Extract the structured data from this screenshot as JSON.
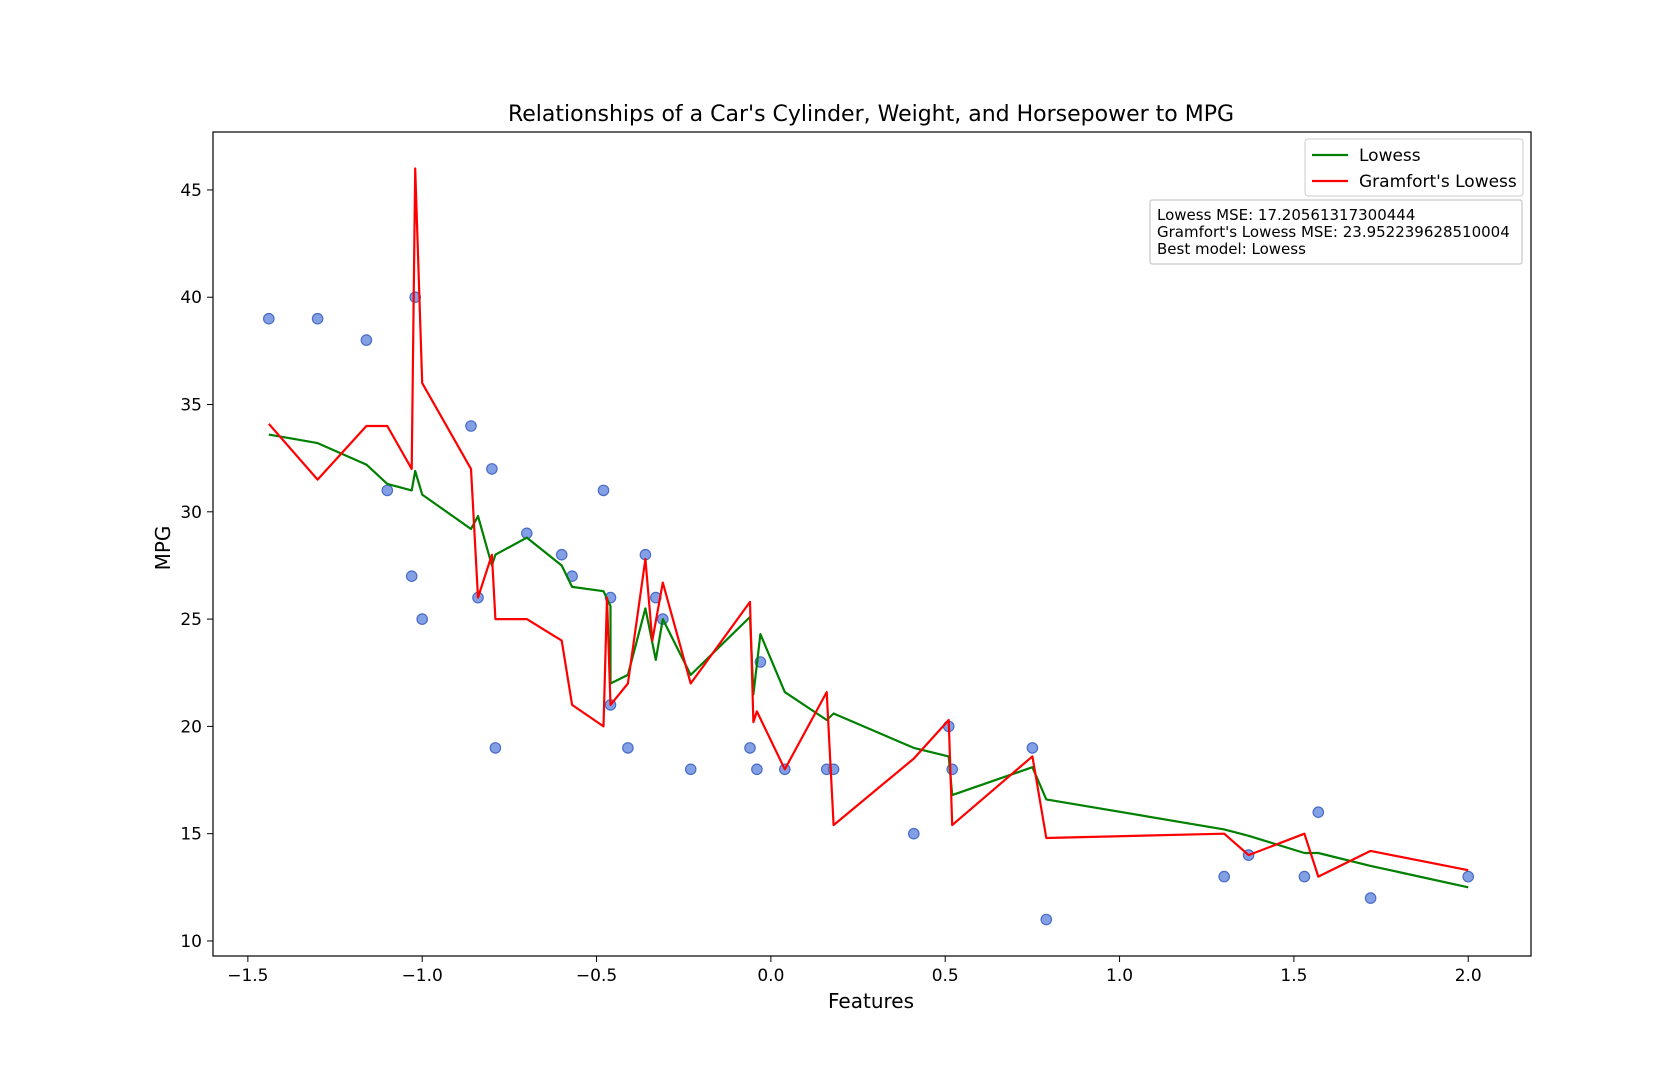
{
  "chart_data": {
    "type": "scatter",
    "title": "Relationships of a Car's Cylinder, Weight, and Horsepower to MPG",
    "xlabel": "Features",
    "ylabel": "MPG",
    "xlim": [
      -1.6,
      2.18
    ],
    "ylim": [
      9.3,
      47.7
    ],
    "xticks": [
      -1.5,
      -1.0,
      -0.5,
      0.0,
      0.5,
      1.0,
      1.5,
      2.0
    ],
    "xtick_labels": [
      "−1.5",
      "−1.0",
      "−0.5",
      "0.0",
      "0.5",
      "1.0",
      "1.5",
      "2.0"
    ],
    "yticks": [
      10,
      15,
      20,
      25,
      30,
      35,
      40,
      45
    ],
    "ytick_labels": [
      "10",
      "15",
      "20",
      "25",
      "30",
      "35",
      "40",
      "45"
    ],
    "grid": false,
    "legend_position": "top-right",
    "scatter": {
      "color": "#6f8fe0",
      "edgecolor": "#4a6cc8",
      "x": [
        -1.44,
        -1.3,
        -1.16,
        -1.1,
        -1.03,
        -1.02,
        -1.0,
        -0.86,
        -0.84,
        -0.8,
        -0.79,
        -0.7,
        -0.6,
        -0.57,
        -0.48,
        -0.46,
        -0.46,
        -0.41,
        -0.36,
        -0.33,
        -0.31,
        -0.23,
        -0.06,
        -0.04,
        -0.03,
        0.04,
        0.16,
        0.18,
        0.41,
        0.51,
        0.52,
        0.75,
        0.79,
        1.3,
        1.37,
        1.53,
        1.57,
        1.72,
        2.0
      ],
      "y": [
        39,
        39,
        38,
        31,
        27,
        40,
        25,
        34,
        26,
        32,
        19,
        29,
        28,
        27,
        31,
        26,
        21,
        19,
        28,
        26,
        25,
        18,
        19,
        18,
        23,
        18,
        18,
        18,
        15,
        20,
        18,
        19,
        11,
        13,
        14,
        13,
        16,
        12,
        13
      ]
    },
    "series": [
      {
        "name": "Lowess",
        "color": "#008000",
        "x": [
          -1.44,
          -1.3,
          -1.16,
          -1.1,
          -1.03,
          -1.02,
          -1.0,
          -0.86,
          -0.84,
          -0.8,
          -0.79,
          -0.7,
          -0.6,
          -0.57,
          -0.48,
          -0.46,
          -0.46,
          -0.41,
          -0.36,
          -0.33,
          -0.31,
          -0.23,
          -0.06,
          -0.05,
          -0.03,
          0.04,
          0.16,
          0.18,
          0.41,
          0.51,
          0.52,
          0.75,
          0.79,
          1.3,
          1.37,
          1.53,
          1.57,
          1.72,
          2.0
        ],
        "y": [
          33.6,
          33.2,
          32.2,
          31.3,
          31.0,
          31.9,
          30.8,
          29.2,
          29.8,
          27.5,
          28.0,
          28.8,
          27.5,
          26.5,
          26.3,
          25.6,
          22.0,
          22.4,
          25.5,
          23.1,
          25.0,
          22.4,
          25.1,
          21.5,
          24.3,
          21.6,
          20.3,
          20.6,
          19.0,
          18.6,
          16.8,
          18.1,
          16.6,
          15.2,
          14.9,
          14.1,
          14.1,
          13.5,
          12.5
        ]
      },
      {
        "name": "Gramfort's Lowess",
        "color": "#ff0000",
        "x": [
          -1.44,
          -1.3,
          -1.16,
          -1.1,
          -1.03,
          -1.02,
          -1.0,
          -0.86,
          -0.84,
          -0.8,
          -0.79,
          -0.7,
          -0.6,
          -0.57,
          -0.48,
          -0.47,
          -0.46,
          -0.41,
          -0.36,
          -0.34,
          -0.31,
          -0.23,
          -0.06,
          -0.05,
          -0.04,
          0.04,
          0.16,
          0.18,
          0.41,
          0.51,
          0.52,
          0.75,
          0.79,
          1.3,
          1.37,
          1.53,
          1.57,
          1.72,
          2.0
        ],
        "y": [
          34.1,
          31.5,
          34.0,
          34.0,
          32.0,
          46.0,
          36.0,
          32.0,
          26.0,
          28.0,
          25.0,
          25.0,
          24.0,
          21.0,
          20.0,
          26.0,
          21.0,
          22.0,
          27.8,
          24.0,
          26.7,
          22.0,
          25.8,
          20.2,
          20.7,
          18.0,
          21.6,
          15.4,
          18.5,
          20.3,
          15.4,
          18.6,
          14.8,
          15.0,
          14.0,
          15.0,
          13.0,
          14.2,
          13.3
        ]
      }
    ],
    "annotation": {
      "lines": [
        "Lowess MSE: 17.20561317300444",
        "Gramfort's Lowess MSE: 23.952239628510004",
        "Best model: Lowess"
      ]
    }
  }
}
